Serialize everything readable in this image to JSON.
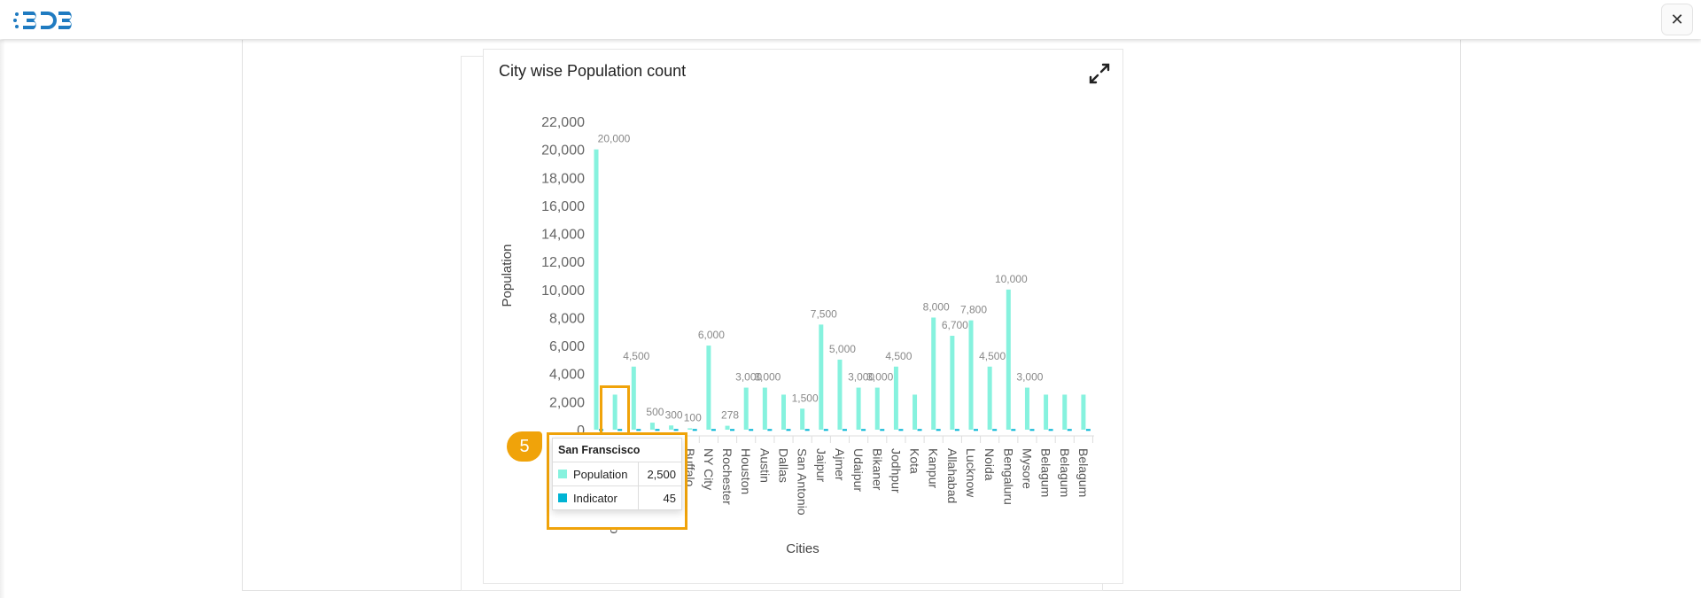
{
  "header": {
    "logo_text": "BDB",
    "close_icon": "close-icon"
  },
  "chart_card": {
    "title": "City wise Population count",
    "expand_icon": "expand-icon"
  },
  "chart_data": {
    "type": "bar",
    "title": "City wise Population count",
    "xlabel": "Cities",
    "ylabel": "Population",
    "ylim": [
      0,
      22000
    ],
    "yticks": [
      "0",
      "2,000",
      "4,000",
      "6,000",
      "8,000",
      "10,000",
      "12,000",
      "14,000",
      "16,000",
      "18,000",
      "20,000",
      "22,000"
    ],
    "grid": false,
    "categories": [
      "",
      "San Franscisco",
      "",
      "",
      "",
      "Buffalo",
      "NY City",
      "Rochester",
      "Houston",
      "Austin",
      "Dallas",
      "San Antonio",
      "Jaipur",
      "Ajmer",
      "Udaipur",
      "Bikaner",
      "Jodhpur",
      "Kota",
      "Kanpur",
      "Allahabad",
      "Lucknow",
      "Noida",
      "Bengaluru",
      "Mysore",
      "Belagum",
      "Belagum",
      "Belagum"
    ],
    "series": [
      {
        "name": "Population",
        "color": "#86f2de",
        "values": [
          20000,
          2500,
          4500,
          500,
          300,
          100,
          6000,
          278,
          3000,
          3000,
          2500,
          1500,
          7500,
          5000,
          3000,
          3000,
          4500,
          2500,
          8000,
          6700,
          7800,
          4500,
          10000,
          3000,
          2500,
          2500,
          2500
        ],
        "labels": [
          "20,000",
          "",
          "4,500",
          "500",
          "300",
          "100",
          "6,000",
          "278",
          "3,000",
          "3,000",
          "",
          "1,500",
          "7,500",
          "5,000",
          "3,000",
          "3,000",
          "4,500",
          "",
          "8,000",
          "6,700",
          "7,800",
          "4,500",
          "10,000",
          "3,000",
          "",
          "",
          ""
        ]
      },
      {
        "name": "Indicator",
        "color": "#00b4d4",
        "values": [
          45,
          45,
          45,
          45,
          45,
          45,
          45,
          45,
          45,
          45,
          45,
          45,
          45,
          45,
          45,
          45,
          45,
          45,
          45,
          45,
          45,
          45,
          45,
          45,
          45,
          45,
          45
        ]
      }
    ]
  },
  "tooltip": {
    "title": "San Franscisco",
    "rows": [
      {
        "label": "Population",
        "value": "2,500",
        "color": "#86f2de"
      },
      {
        "label": "Indicator",
        "value": "45",
        "color": "#00b4d4"
      }
    ]
  },
  "annotation": {
    "step": "5",
    "color": "#f0a30a"
  }
}
